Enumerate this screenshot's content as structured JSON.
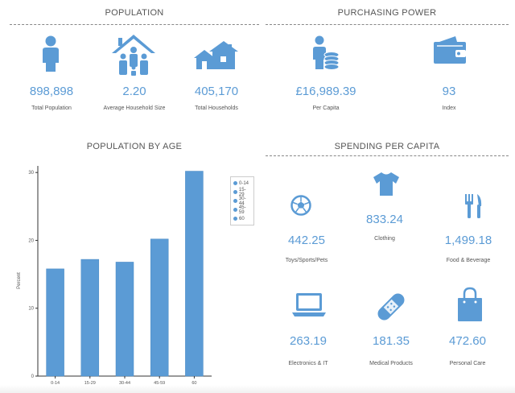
{
  "population": {
    "title": "POPULATION",
    "stats": [
      {
        "value": "898,898",
        "label": "Total Population",
        "icon": "person-icon"
      },
      {
        "value": "2.20",
        "label": "Average Household Size",
        "icon": "family-house-icon"
      },
      {
        "value": "405,170",
        "label": "Total Households",
        "icon": "houses-icon"
      }
    ]
  },
  "purchasing_power": {
    "title": "PURCHASING POWER",
    "stats": [
      {
        "value": "£16,989.39",
        "label": "Per Capita",
        "icon": "person-coins-icon"
      },
      {
        "value": "93",
        "label": "Index",
        "icon": "wallet-icon"
      }
    ]
  },
  "population_by_age": {
    "title": "POPULATION BY AGE"
  },
  "spending": {
    "title": "SPENDING PER CAPITA",
    "items": [
      {
        "value": "442.25",
        "label": "Toys/Sports/Pets",
        "icon": "soccer-ball-icon"
      },
      {
        "value": "833.24",
        "label": "Clothing",
        "icon": "tshirt-icon"
      },
      {
        "value": "1,499.18",
        "label": "Food & Beverage",
        "icon": "fork-knife-icon"
      },
      {
        "value": "263.19",
        "label": "Electronics & IT",
        "icon": "laptop-icon"
      },
      {
        "value": "181.35",
        "label": "Medical Products",
        "icon": "bandage-icon"
      },
      {
        "value": "472.60",
        "label": "Personal Care",
        "icon": "shopping-bag-icon"
      }
    ]
  },
  "colors": {
    "accent": "#5b9bd5",
    "text": "#555555"
  },
  "chart_data": {
    "type": "bar",
    "title": "POPULATION BY AGE",
    "categories": [
      "0-14",
      "15-29",
      "30-44",
      "45-59",
      "60"
    ],
    "values": [
      15.8,
      17.2,
      16.8,
      20.2,
      30.2
    ],
    "xlabel": "",
    "ylabel": "Percent",
    "yticks": [
      0,
      10,
      20,
      30
    ],
    "ylim": [
      0,
      30.5
    ],
    "legend": {
      "position": "top-right",
      "entries": [
        "0-14",
        "15-29",
        "30-44",
        "45-59",
        "60"
      ]
    },
    "grid": false
  }
}
